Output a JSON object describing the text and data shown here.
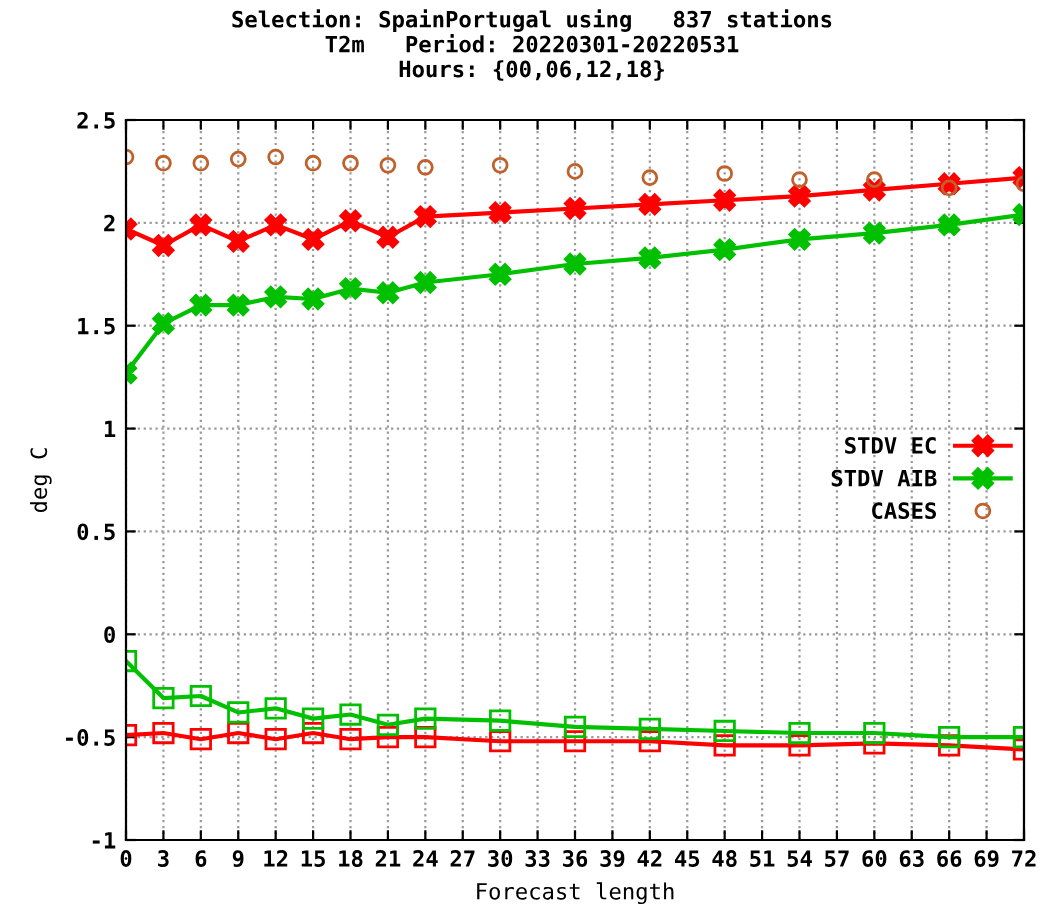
{
  "chart_data": {
    "type": "line",
    "title": "Selection: SpainPortugal using   837 stations\nT2m   Period: 20220301-20220531\nHours: {00,06,12,18}",
    "xlabel": "Forecast length",
    "ylabel": "deg C",
    "x": [
      0,
      3,
      6,
      9,
      12,
      15,
      18,
      21,
      24,
      30,
      36,
      42,
      48,
      54,
      60,
      66,
      72
    ],
    "series": [
      {
        "name": "STDV EC",
        "color": "#ff0000",
        "marker": "cross",
        "values": [
          1.97,
          1.89,
          1.99,
          1.91,
          1.99,
          1.92,
          2.01,
          1.93,
          2.03,
          2.05,
          2.07,
          2.09,
          2.11,
          2.13,
          2.16,
          2.19,
          2.22
        ]
      },
      {
        "name": "STDV AIB",
        "color": "#00c000",
        "marker": "cross",
        "values": [
          1.27,
          1.51,
          1.6,
          1.6,
          1.64,
          1.63,
          1.68,
          1.66,
          1.71,
          1.75,
          1.8,
          1.83,
          1.87,
          1.92,
          1.95,
          1.99,
          2.04
        ]
      },
      {
        "name": "CASES",
        "color": "#c0602a",
        "type": "scatter",
        "marker": "circle",
        "values": [
          2.32,
          2.29,
          2.29,
          2.31,
          2.32,
          2.29,
          2.29,
          2.28,
          2.27,
          2.28,
          2.25,
          2.22,
          2.24,
          2.21,
          2.21,
          2.17,
          2.19
        ]
      },
      {
        "color": "#ff0000",
        "marker": "square",
        "values": [
          -0.49,
          -0.48,
          -0.51,
          -0.48,
          -0.51,
          -0.48,
          -0.51,
          -0.5,
          -0.5,
          -0.52,
          -0.52,
          -0.52,
          -0.54,
          -0.54,
          -0.53,
          -0.54,
          -0.56
        ]
      },
      {
        "color": "#00c000",
        "marker": "square",
        "values": [
          -0.13,
          -0.31,
          -0.3,
          -0.38,
          -0.36,
          -0.41,
          -0.39,
          -0.44,
          -0.41,
          -0.42,
          -0.45,
          -0.46,
          -0.47,
          -0.48,
          -0.48,
          -0.5,
          -0.5
        ]
      }
    ],
    "xlim": [
      0,
      72
    ],
    "xticks": [
      0,
      3,
      6,
      9,
      12,
      15,
      18,
      21,
      24,
      27,
      30,
      33,
      36,
      39,
      42,
      45,
      48,
      51,
      54,
      57,
      60,
      63,
      66,
      69,
      72
    ],
    "ylim": [
      -1,
      2.5
    ],
    "yticks": [
      -1,
      -0.5,
      0,
      0.5,
      1,
      1.5,
      2,
      2.5
    ],
    "grid": true,
    "legend": "right"
  }
}
